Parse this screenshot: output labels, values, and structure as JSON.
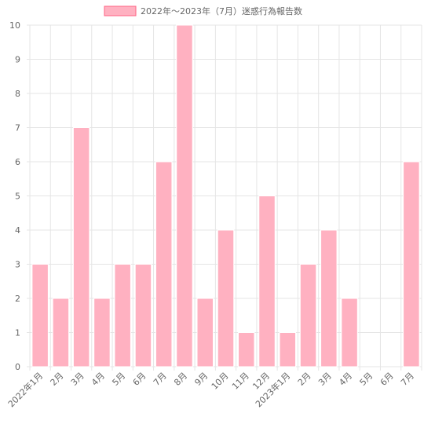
{
  "colors": {
    "bar_fill": "#ffb1c1",
    "bar_stroke": "#ffffff",
    "legend_fill": "#ffb1c1",
    "legend_stroke": "#ff6384",
    "grid": "#e5e5e5",
    "text": "#666666"
  },
  "chart_data": {
    "type": "bar",
    "title": "",
    "xlabel": "",
    "ylabel": "",
    "legend": "top-center",
    "grid": true,
    "ylim": [
      0,
      10
    ],
    "yticks": [
      0,
      1,
      2,
      3,
      4,
      5,
      6,
      7,
      8,
      9,
      10
    ],
    "categories": [
      "2022年1月",
      "2月",
      "3月",
      "4月",
      "5月",
      "6月",
      "7月",
      "8月",
      "9月",
      "10月",
      "11月",
      "12月",
      "2023年1月",
      "2月",
      "3月",
      "4月",
      "5月",
      "6月",
      "7月"
    ],
    "series": [
      {
        "name": "2022年～2023年（7月）迷惑行為報告数",
        "values": [
          3,
          2,
          7,
          2,
          3,
          3,
          6,
          10,
          2,
          4,
          1,
          5,
          1,
          3,
          4,
          2,
          0,
          0,
          6
        ]
      }
    ]
  }
}
